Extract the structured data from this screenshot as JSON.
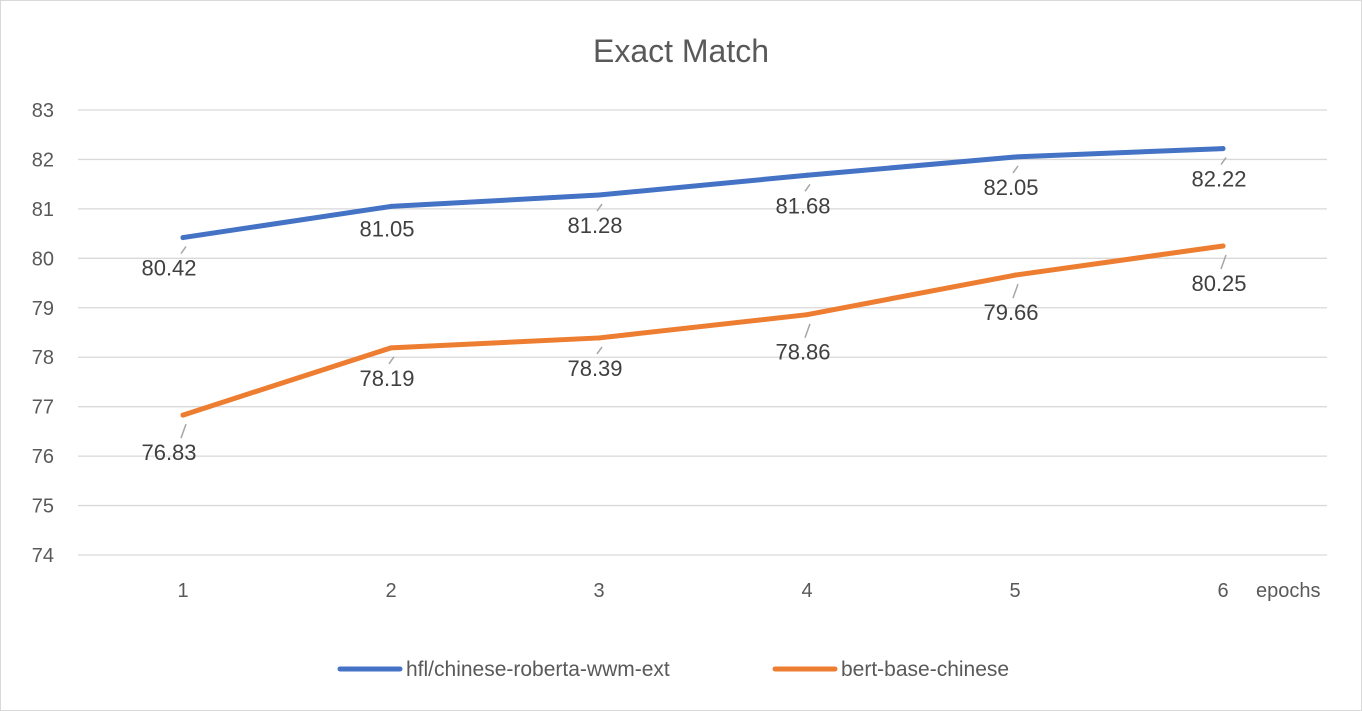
{
  "chart_data": {
    "type": "line",
    "title": "Exact Match",
    "xlabel": "epochs",
    "ylabel": "",
    "categories": [
      "1",
      "2",
      "3",
      "4",
      "5",
      "6"
    ],
    "ylim": [
      74,
      83
    ],
    "yticks": [
      "74",
      "75",
      "76",
      "77",
      "78",
      "79",
      "80",
      "81",
      "82",
      "83"
    ],
    "grid": true,
    "legend_position": "bottom",
    "series": [
      {
        "name": "hfl/chinese-roberta-wwm-ext",
        "color": "#4472C4",
        "values": [
          80.42,
          81.05,
          81.28,
          81.68,
          82.05,
          82.22
        ],
        "labels": [
          "80.42",
          "81.05",
          "81.28",
          "81.68",
          "82.05",
          "82.22"
        ]
      },
      {
        "name": "bert-base-chinese",
        "color": "#ED7D31",
        "values": [
          76.83,
          78.19,
          78.39,
          78.86,
          79.66,
          80.25
        ],
        "labels": [
          "76.83",
          "78.19",
          "78.39",
          "78.86",
          "79.66",
          "80.25"
        ]
      }
    ]
  }
}
